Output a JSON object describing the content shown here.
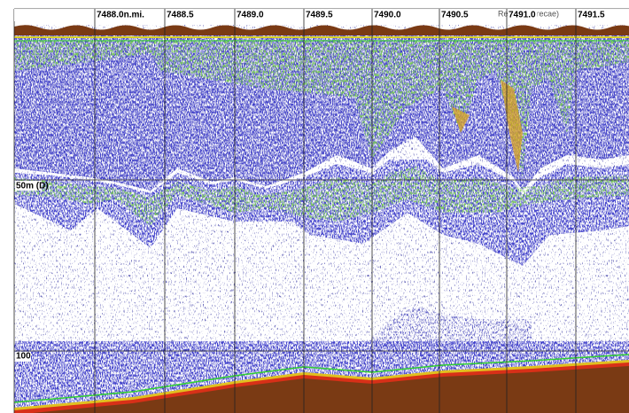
{
  "distance_labels": [
    "7488.0n.mi.",
    "7488.5",
    "7489.0",
    "7489.5",
    "7490.0",
    "7490.5",
    "7491.0",
    "7491.5"
  ],
  "depth_labels": [
    "50m (D)",
    "100"
  ],
  "overlay_fragments": [
    "Re",
    "trecae)"
  ]
}
